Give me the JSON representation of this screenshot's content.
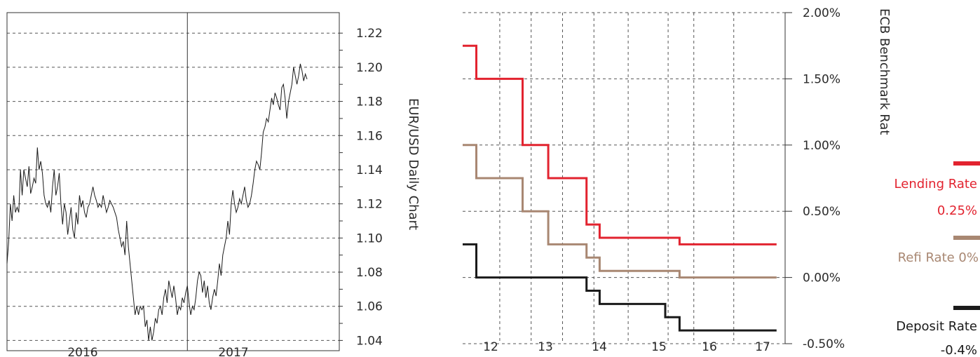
{
  "colors": {
    "lending": "#e2232f",
    "refi": "#a88772",
    "deposit": "#1a1a1a",
    "grid": "#555555",
    "axis": "#333333",
    "text": "#2a2a2a"
  },
  "chart_data": [
    {
      "type": "line",
      "title": "",
      "ylabel": "EUR/USD Daily Chart",
      "xlabel": "",
      "x_tick_labels": [
        "2016",
        "2017"
      ],
      "y_ticks": [
        1.04,
        1.06,
        1.08,
        1.1,
        1.12,
        1.14,
        1.16,
        1.18,
        1.2,
        1.22
      ],
      "y_tick_labels": [
        "1.04",
        "1.06",
        "1.08",
        "1.10",
        "1.12",
        "1.14",
        "1.16",
        "1.18",
        "1.20",
        "1.22"
      ],
      "ylim": [
        1.034,
        1.232
      ],
      "grid": "horizontal dashed",
      "year_divider_at_index": 107,
      "series": [
        {
          "values": [
            1.085,
            1.098,
            1.12,
            1.11,
            1.125,
            1.115,
            1.118,
            1.115,
            1.14,
            1.125,
            1.14,
            1.135,
            1.13,
            1.142,
            1.126,
            1.13,
            1.135,
            1.132,
            1.153,
            1.14,
            1.145,
            1.138,
            1.125,
            1.12,
            1.118,
            1.122,
            1.115,
            1.13,
            1.14,
            1.125,
            1.13,
            1.138,
            1.12,
            1.108,
            1.12,
            1.115,
            1.102,
            1.11,
            1.118,
            1.105,
            1.1,
            1.115,
            1.108,
            1.125,
            1.118,
            1.122,
            1.115,
            1.112,
            1.118,
            1.12,
            1.125,
            1.13,
            1.125,
            1.122,
            1.118,
            1.12,
            1.118,
            1.125,
            1.12,
            1.115,
            1.118,
            1.122,
            1.12,
            1.118,
            1.115,
            1.112,
            1.105,
            1.1,
            1.095,
            1.098,
            1.09,
            1.11,
            1.095,
            1.085,
            1.075,
            1.065,
            1.055,
            1.06,
            1.055,
            1.06,
            1.058,
            1.06,
            1.048,
            1.052,
            1.04,
            1.048,
            1.04,
            1.045,
            1.053,
            1.05,
            1.058,
            1.06,
            1.055,
            1.065,
            1.07,
            1.062,
            1.075,
            1.07,
            1.065,
            1.072,
            1.065,
            1.055,
            1.06,
            1.058,
            1.065,
            1.062,
            1.068,
            1.072,
            1.062,
            1.055,
            1.06,
            1.058,
            1.065,
            1.075,
            1.08,
            1.078,
            1.068,
            1.075,
            1.065,
            1.072,
            1.062,
            1.058,
            1.065,
            1.07,
            1.066,
            1.075,
            1.085,
            1.078,
            1.09,
            1.095,
            1.1,
            1.11,
            1.102,
            1.12,
            1.128,
            1.12,
            1.115,
            1.118,
            1.123,
            1.12,
            1.125,
            1.13,
            1.122,
            1.118,
            1.12,
            1.125,
            1.132,
            1.14,
            1.145,
            1.143,
            1.14,
            1.15,
            1.162,
            1.165,
            1.17,
            1.168,
            1.175,
            1.182,
            1.178,
            1.185,
            1.182,
            1.178,
            1.175,
            1.188,
            1.19,
            1.182,
            1.17,
            1.18,
            1.185,
            1.19,
            1.2,
            1.195,
            1.19,
            1.195,
            1.202,
            1.198,
            1.192,
            1.196,
            1.193
          ],
          "color": "#1a1a1a"
        }
      ]
    },
    {
      "type": "line",
      "step": true,
      "title": "",
      "ylabel": "ECB Benchmark Rat",
      "xlabel": "",
      "x_ticks": [
        12,
        13,
        14,
        15,
        16,
        17
      ],
      "xlim": [
        11.55,
        17.2
      ],
      "y_ticks": [
        -0.5,
        0.0,
        0.5,
        1.0,
        1.5,
        2.0
      ],
      "y_tick_labels": [
        "-0.50%",
        "0.00%",
        "0.50%",
        "1.00%",
        "1.50%",
        "2.00%"
      ],
      "ylim": [
        -0.5,
        2.0
      ],
      "grid": "dashed both",
      "legend_position": "right",
      "series": [
        {
          "name": "Lending Rate",
          "latest": "0.25%",
          "color": "#e2232f",
          "x": [
            11.55,
            11.79,
            11.79,
            12.6,
            12.6,
            13.05,
            13.05,
            13.72,
            13.72,
            13.95,
            13.95,
            15.35,
            15.35,
            17.05
          ],
          "values": [
            1.75,
            1.75,
            1.5,
            1.5,
            1.0,
            1.0,
            0.75,
            0.75,
            0.4,
            0.4,
            0.3,
            0.3,
            0.25,
            0.25
          ]
        },
        {
          "name": "Refi Rate",
          "latest": "0%",
          "color": "#a88772",
          "x": [
            11.55,
            11.79,
            11.79,
            12.6,
            12.6,
            13.05,
            13.05,
            13.72,
            13.72,
            13.95,
            13.95,
            15.35,
            15.35,
            17.05
          ],
          "values": [
            1.0,
            1.0,
            0.75,
            0.75,
            0.5,
            0.5,
            0.25,
            0.25,
            0.15,
            0.15,
            0.05,
            0.05,
            0.0,
            0.0
          ],
          "legend_label": "Refi Rate 0%"
        },
        {
          "name": "Deposit Rate",
          "latest": "-0.4%",
          "color": "#1a1a1a",
          "x": [
            11.55,
            11.79,
            11.79,
            13.72,
            13.72,
            13.95,
            13.95,
            15.1,
            15.1,
            15.35,
            15.35,
            17.05
          ],
          "values": [
            0.25,
            0.25,
            0.0,
            0.0,
            -0.1,
            -0.1,
            -0.2,
            -0.2,
            -0.3,
            -0.3,
            -0.4,
            -0.4
          ]
        }
      ]
    }
  ]
}
